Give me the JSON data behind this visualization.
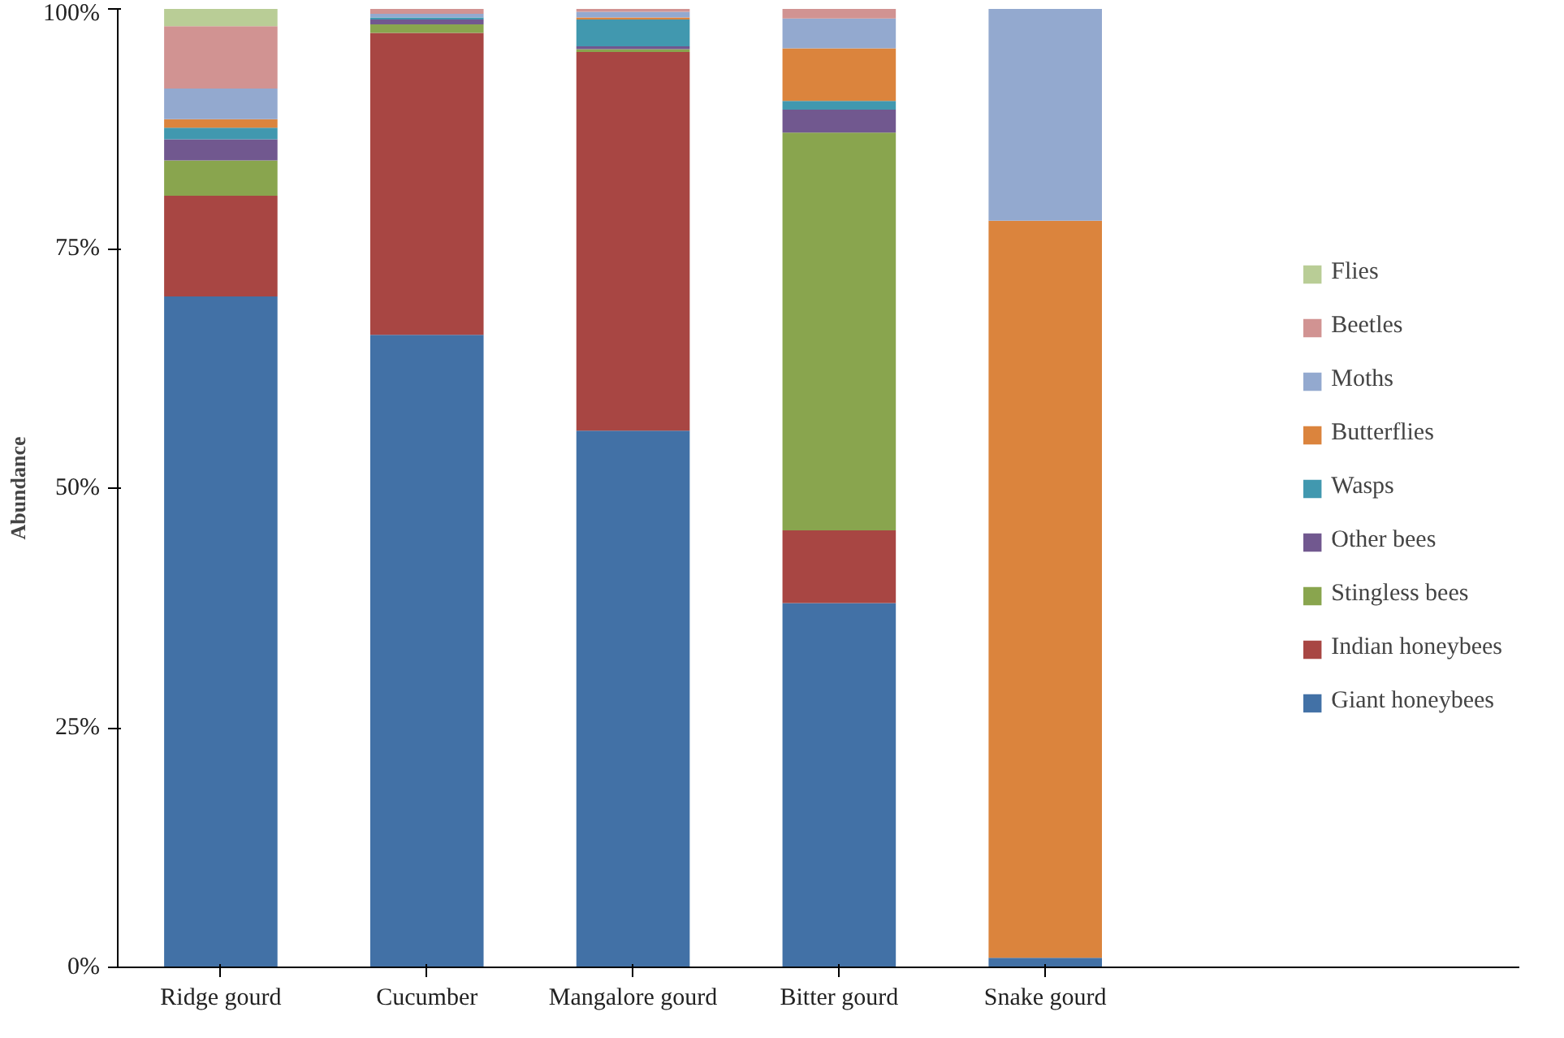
{
  "chart_data": {
    "type": "bar",
    "stacked": true,
    "ylabel": "Abundance",
    "categories": [
      "Ridge gourd",
      "Cucumber",
      "Mangalore gourd",
      "Bitter gourd",
      "Snake gourd"
    ],
    "ylim": [
      0,
      100
    ],
    "yticks": [
      {
        "value": 0,
        "label": "0%"
      },
      {
        "value": 25,
        "label": "25%"
      },
      {
        "value": 50,
        "label": "50%"
      },
      {
        "value": 75,
        "label": "75%"
      },
      {
        "value": 100,
        "label": "100%"
      }
    ],
    "grid": false,
    "legend": "right",
    "series": [
      {
        "name": "Giant honeybees",
        "color": "#4271a6",
        "values": [
          70,
          66,
          56,
          38,
          1
        ]
      },
      {
        "name": "Indian honeybees",
        "color": "#a84643",
        "values": [
          10.5,
          31.5,
          39.5,
          7.6,
          0
        ]
      },
      {
        "name": "Stingless bees",
        "color": "#89a54e",
        "values": [
          3.7,
          0.9,
          0.3,
          41.5,
          0
        ]
      },
      {
        "name": "Other bees",
        "color": "#71588f",
        "values": [
          2.2,
          0.5,
          0.3,
          2.4,
          0
        ]
      },
      {
        "name": "Wasps",
        "color": "#4198af",
        "values": [
          1.2,
          0.2,
          2.8,
          0.9,
          0
        ]
      },
      {
        "name": "Butterflies",
        "color": "#db843d",
        "values": [
          0.9,
          0,
          0.2,
          5.5,
          76.9
        ]
      },
      {
        "name": "Moths",
        "color": "#93a9cf",
        "values": [
          3.2,
          0.4,
          0.6,
          3.1,
          22.1
        ]
      },
      {
        "name": "Beetles",
        "color": "#d19392",
        "values": [
          6.5,
          0.5,
          0.3,
          1.0,
          0
        ]
      },
      {
        "name": "Flies",
        "color": "#b9cd96",
        "values": [
          1.8,
          0,
          0.2,
          0,
          0
        ]
      }
    ]
  }
}
